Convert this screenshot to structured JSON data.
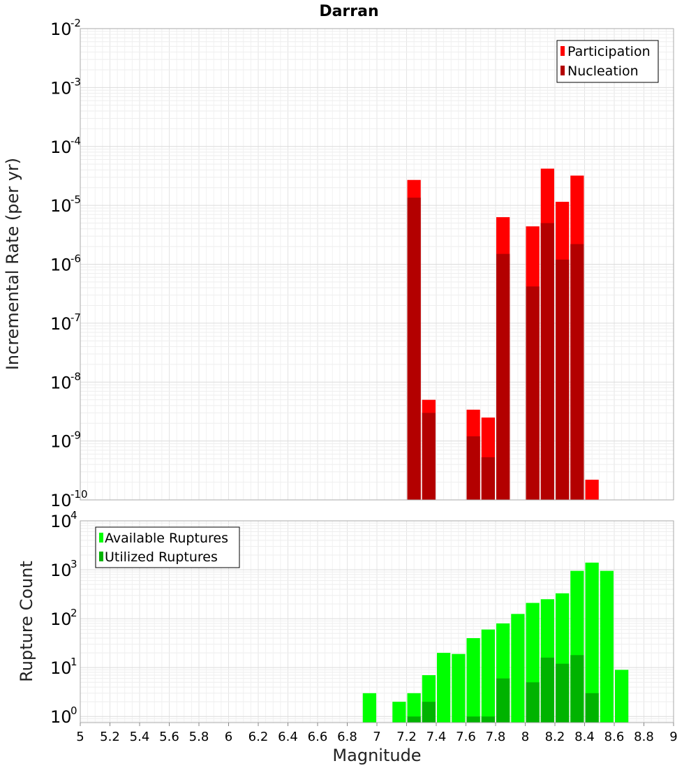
{
  "title": "Darran",
  "chart_data": [
    {
      "type": "bar",
      "ylabel": "Incremental Rate (per yr)",
      "yscale": "log",
      "ylim": [
        1e-10,
        0.01
      ],
      "xlim": [
        5,
        9
      ],
      "grid": true,
      "legend_position": "top-right",
      "series": [
        {
          "name": "Participation",
          "color": "#ff0000",
          "x": [
            7.25,
            7.35,
            7.65,
            7.75,
            7.85,
            8.05,
            8.15,
            8.25,
            8.35,
            8.45
          ],
          "values": [
            2.7e-05,
            5e-09,
            3.4e-09,
            2.5e-09,
            6.3e-06,
            4.4e-06,
            4.2e-05,
            1.15e-05,
            3.2e-05,
            2.2e-10
          ]
        },
        {
          "name": "Nucleation",
          "color": "#b30000",
          "x": [
            7.25,
            7.35,
            7.65,
            7.75,
            7.85,
            8.05,
            8.15,
            8.25,
            8.35
          ],
          "values": [
            1.35e-05,
            3e-09,
            1.2e-09,
            5.3e-10,
            1.5e-06,
            4.2e-07,
            5e-06,
            1.2e-06,
            2.2e-06
          ]
        }
      ]
    },
    {
      "type": "bar",
      "xlabel": "Magnitude",
      "ylabel": "Rupture Count",
      "yscale": "log",
      "ylim": [
        0.75,
        10000.0
      ],
      "xlim": [
        5,
        9
      ],
      "xticks": [
        "5",
        "5.2",
        "5.4",
        "5.6",
        "5.8",
        "6",
        "6.2",
        "6.4",
        "6.6",
        "6.8",
        "7",
        "7.2",
        "7.4",
        "7.6",
        "7.8",
        "8",
        "8.2",
        "8.4",
        "8.6",
        "8.8",
        "9"
      ],
      "grid": true,
      "legend_position": "top-left",
      "series": [
        {
          "name": "Available Ruptures",
          "color": "#00ff00",
          "x": [
            6.95,
            7.15,
            7.25,
            7.35,
            7.45,
            7.55,
            7.65,
            7.75,
            7.85,
            7.95,
            8.05,
            8.15,
            8.25,
            8.35,
            8.45,
            8.55,
            8.65
          ],
          "values": [
            3,
            2,
            3,
            7,
            20,
            19,
            40,
            60,
            80,
            125,
            210,
            250,
            330,
            950,
            1400,
            950,
            9
          ]
        },
        {
          "name": "Utilized Ruptures",
          "color": "#00b300",
          "x": [
            7.25,
            7.35,
            7.65,
            7.75,
            7.85,
            8.05,
            8.15,
            8.25,
            8.35,
            8.45
          ],
          "values": [
            1,
            2,
            1,
            1,
            6,
            5,
            16,
            12,
            18,
            3
          ]
        }
      ]
    }
  ],
  "ytick_base": "10",
  "top_yticks": [
    "-2",
    "-3",
    "-4",
    "-5",
    "-6",
    "-7",
    "-8",
    "-9",
    "-10"
  ],
  "bottom_yticks": [
    "4",
    "3",
    "2",
    "1",
    "0"
  ]
}
